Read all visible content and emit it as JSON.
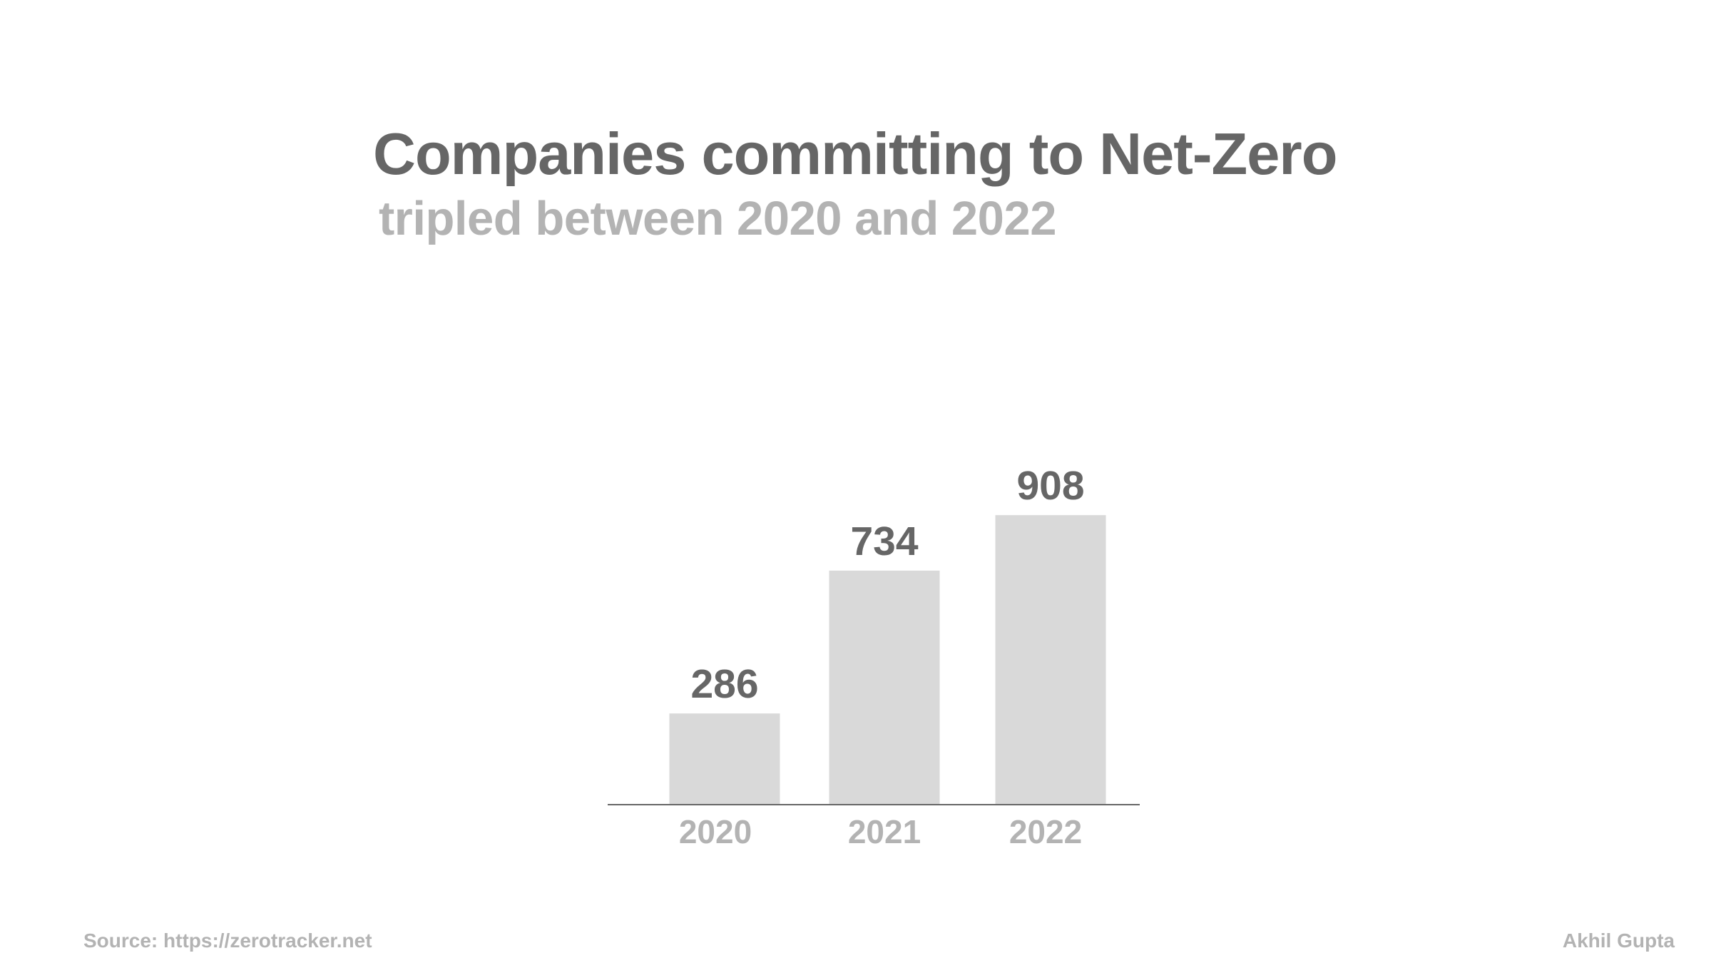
{
  "chart_data": {
    "type": "bar",
    "title": "Companies committing to Net-Zero",
    "subtitle": "tripled between 2020 and 2022",
    "categories": [
      "2020",
      "2021",
      "2022"
    ],
    "values": [
      286,
      734,
      908
    ],
    "data_labels": [
      "286",
      "734",
      "908"
    ],
    "xlabel": "",
    "ylabel": "",
    "ylim": [
      0,
      1000
    ],
    "grid": false,
    "legend": "none",
    "colors": {
      "bar": "#d9d9d9",
      "value_label": "#666666",
      "tick_label": "#b3b3b3",
      "axis": "#666666"
    }
  },
  "footer": {
    "source": "Source: https://zerotracker.net",
    "author": "Akhil Gupta"
  }
}
